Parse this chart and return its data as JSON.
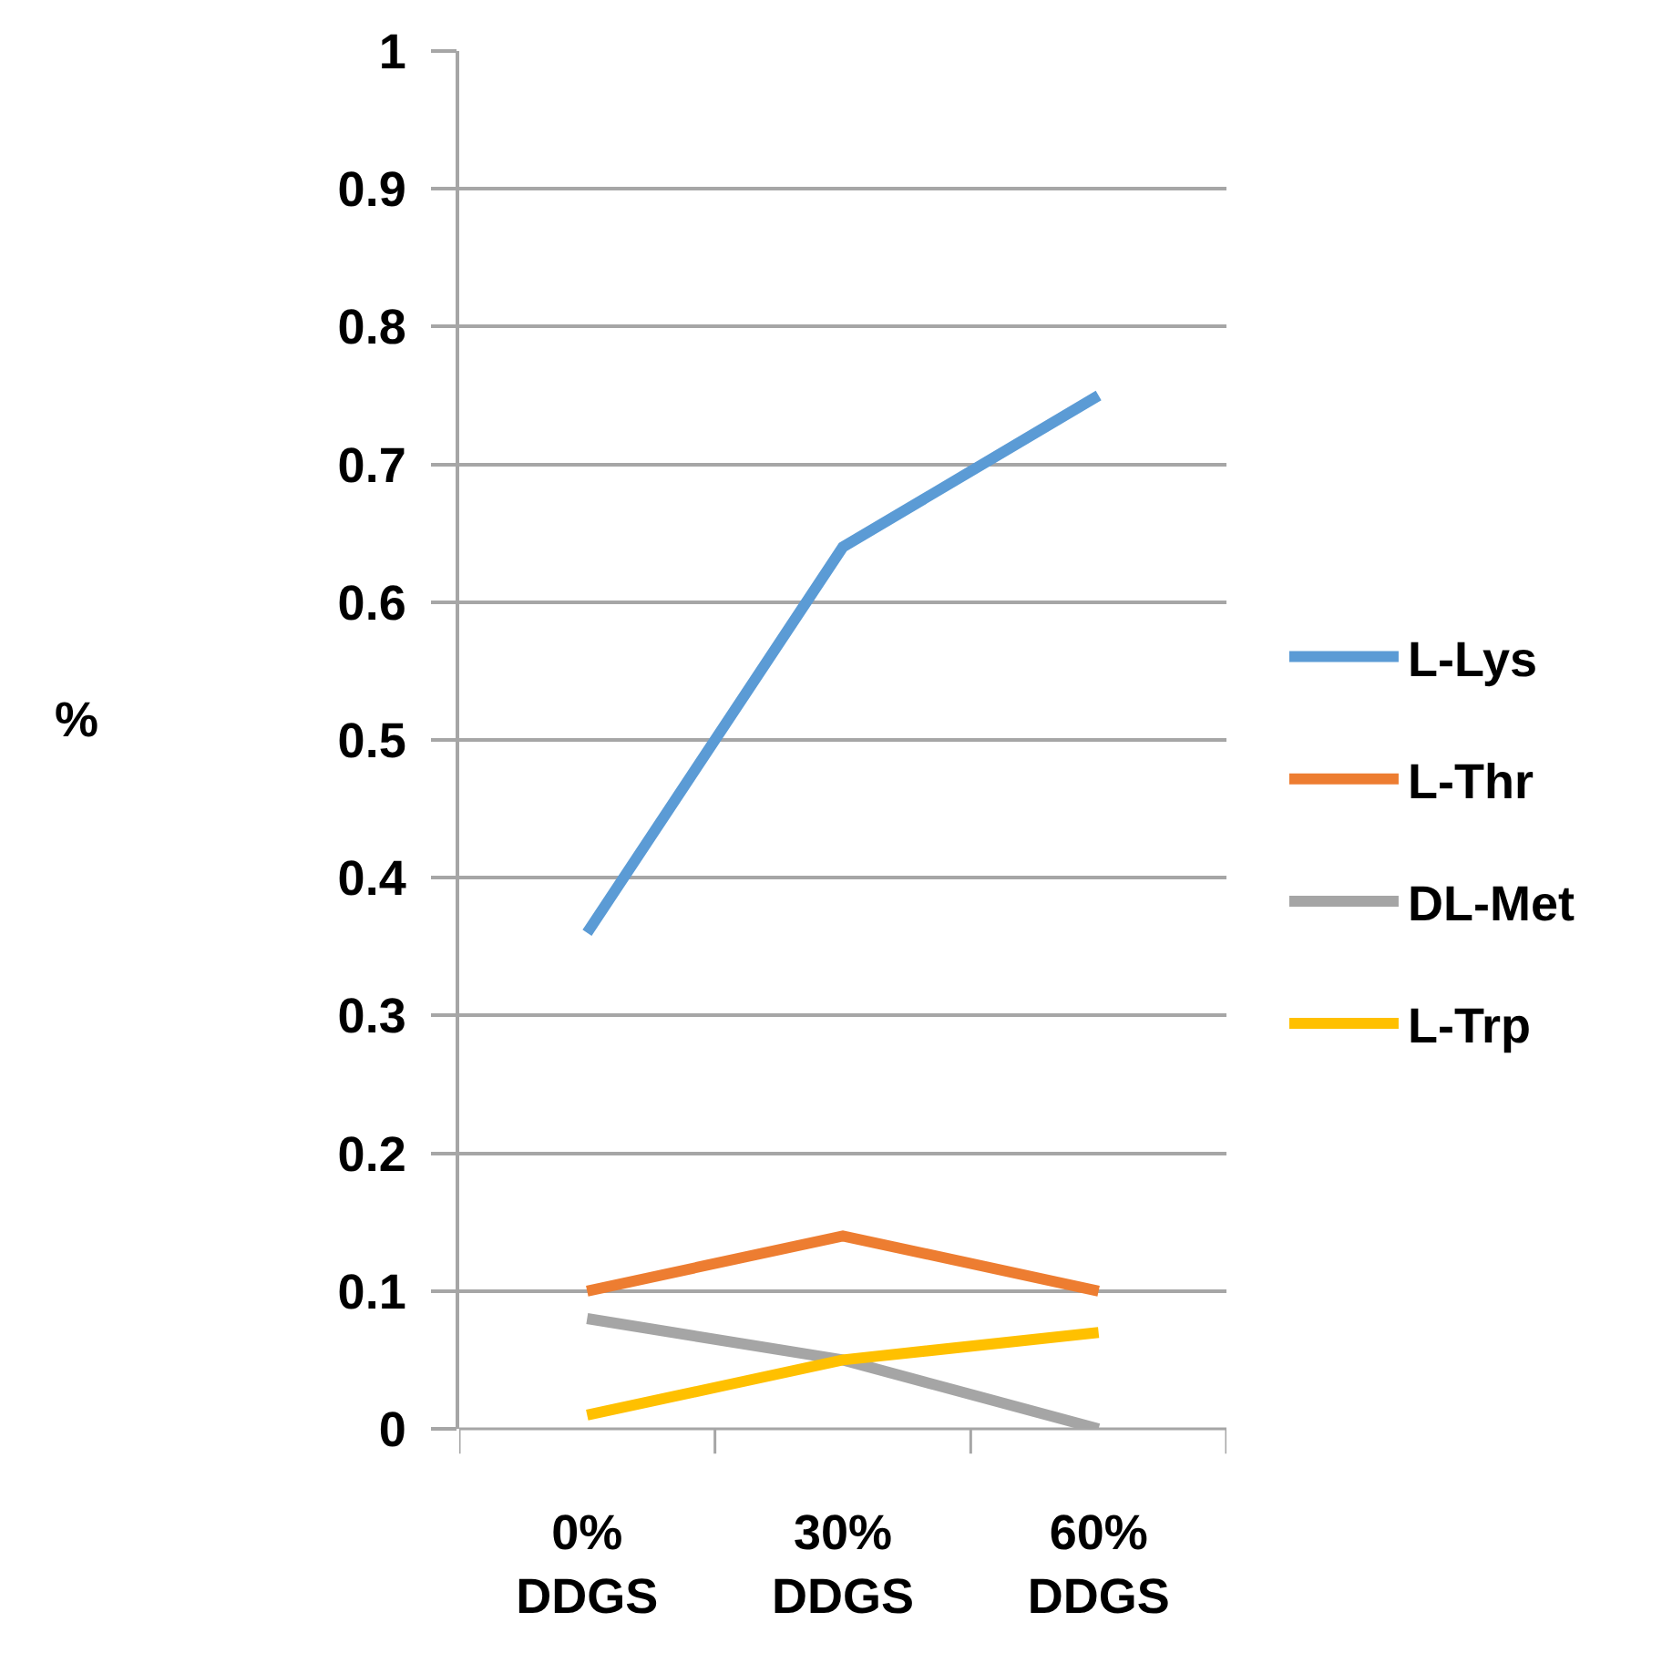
{
  "chart_data": {
    "type": "line",
    "ylabel": "%",
    "categories": [
      "0%\nDDGS",
      "30%\nDDGS",
      "60%\nDDGS"
    ],
    "series": [
      {
        "name": "L-Lys",
        "color": "#5b9bd5",
        "values": [
          0.36,
          0.64,
          0.75
        ]
      },
      {
        "name": "L-Thr",
        "color": "#ed7d31",
        "values": [
          0.1,
          0.14,
          0.1
        ]
      },
      {
        "name": "DL-Met",
        "color": "#a5a5a5",
        "values": [
          0.08,
          0.05,
          0.0
        ]
      },
      {
        "name": "L-Trp",
        "color": "#ffc000",
        "values": [
          0.01,
          0.05,
          0.07
        ]
      }
    ],
    "ylim": [
      0,
      1
    ],
    "yticks": [
      0,
      0.1,
      0.2,
      0.3,
      0.4,
      0.5,
      0.6,
      0.7,
      0.8,
      0.9,
      1
    ],
    "grid": "y",
    "legend": "right",
    "line_style": "solid"
  }
}
